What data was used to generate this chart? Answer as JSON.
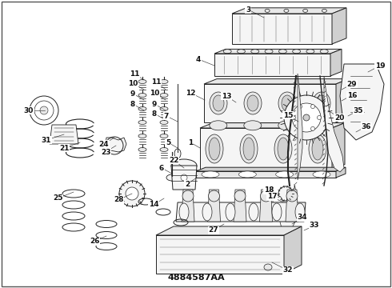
{
  "background_color": "#ffffff",
  "fig_width": 4.9,
  "fig_height": 3.6,
  "dpi": 100,
  "outline": "#222222",
  "fill_white": "#ffffff",
  "fill_light": "#f5f5f5",
  "fill_med": "#e8e8e8",
  "fill_dark": "#d0d0d0",
  "label_color": "#111111",
  "label_fontsize": 6.5,
  "footnote": "4884587AA",
  "lw_main": 0.7,
  "lw_thin": 0.4,
  "lw_thick": 1.0
}
